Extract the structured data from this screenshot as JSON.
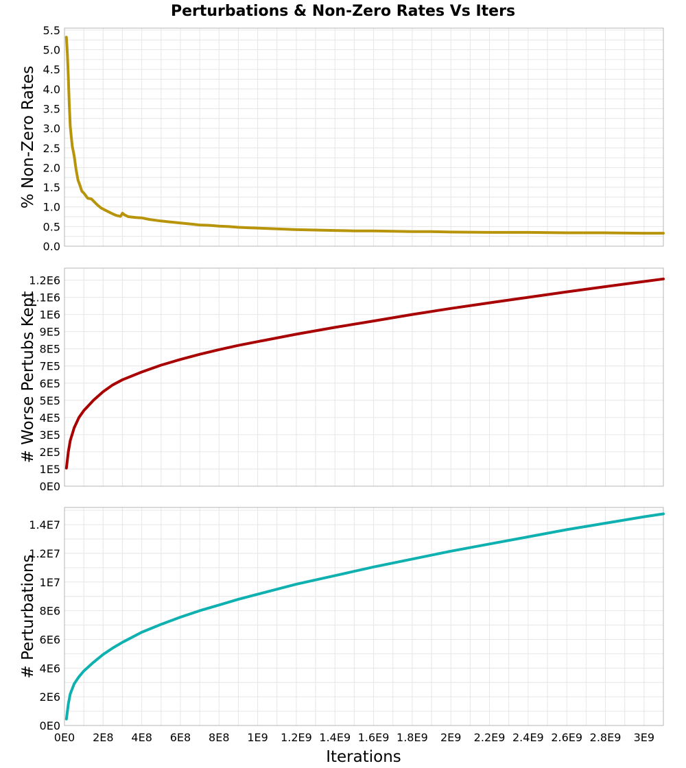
{
  "figure": {
    "title": "Perturbations & Non-Zero Rates Vs Iters",
    "xlabel": "Iterations"
  },
  "chart_data": [
    {
      "type": "line",
      "id": "nonzero",
      "ylabel": "% Non-Zero Rates",
      "xlim": [
        0,
        3100000000
      ],
      "ylim": [
        0,
        5.55
      ],
      "x_ticks_minor": [
        0,
        100000000,
        200000000,
        300000000,
        400000000,
        500000000,
        600000000,
        700000000,
        800000000,
        900000000,
        1000000000,
        1100000000,
        1200000000,
        1300000000,
        1400000000,
        1500000000,
        1600000000,
        1700000000,
        1800000000,
        1900000000,
        2000000000,
        2100000000,
        2200000000,
        2300000000,
        2400000000,
        2500000000,
        2600000000,
        2700000000,
        2800000000,
        2900000000,
        3000000000
      ],
      "y_ticks": [
        {
          "value": 0,
          "label": "0.0"
        },
        {
          "value": 0.5,
          "label": "0.5"
        },
        {
          "value": 1,
          "label": "1.0"
        },
        {
          "value": 1.5,
          "label": "1.5"
        },
        {
          "value": 2,
          "label": "2.0"
        },
        {
          "value": 2.5,
          "label": "2.5"
        },
        {
          "value": 3,
          "label": "3.0"
        },
        {
          "value": 3.5,
          "label": "3.5"
        },
        {
          "value": 4,
          "label": "4.0"
        },
        {
          "value": 4.5,
          "label": "4.5"
        },
        {
          "value": 5,
          "label": "5.0"
        },
        {
          "value": 5.5,
          "label": "5.5"
        }
      ],
      "y_minor": [
        0.25,
        0.75,
        1.25,
        1.75,
        2.25,
        2.75,
        3.25,
        3.75,
        4.25,
        4.75,
        5.25
      ],
      "grid": true,
      "series": [
        {
          "color": "#b8940b",
          "x": [
            10000000,
            15000000,
            20000000,
            25000000,
            30000000,
            40000000,
            50000000,
            60000000,
            70000000,
            80000000,
            90000000,
            100000000,
            120000000,
            140000000,
            150000000,
            170000000,
            190000000,
            210000000,
            230000000,
            250000000,
            270000000,
            290000000,
            300000000,
            310000000,
            330000000,
            350000000,
            370000000,
            400000000,
            420000000,
            440000000,
            470000000,
            500000000,
            540000000,
            580000000,
            620000000,
            660000000,
            700000000,
            750000000,
            800000000,
            850000000,
            900000000,
            950000000,
            1000000000,
            1100000000,
            1200000000,
            1300000000,
            1400000000,
            1500000000,
            1600000000,
            1700000000,
            1800000000,
            1900000000,
            2000000000,
            2200000000,
            2400000000,
            2600000000,
            2800000000,
            3000000000,
            3100000000
          ],
          "y": [
            5.32,
            4.9,
            4.3,
            3.6,
            3.05,
            2.55,
            2.3,
            1.95,
            1.68,
            1.55,
            1.4,
            1.35,
            1.22,
            1.2,
            1.15,
            1.05,
            0.97,
            0.92,
            0.87,
            0.82,
            0.78,
            0.76,
            0.84,
            0.8,
            0.75,
            0.74,
            0.73,
            0.72,
            0.7,
            0.68,
            0.66,
            0.64,
            0.62,
            0.6,
            0.58,
            0.56,
            0.54,
            0.53,
            0.51,
            0.5,
            0.48,
            0.47,
            0.46,
            0.44,
            0.42,
            0.41,
            0.4,
            0.39,
            0.39,
            0.38,
            0.37,
            0.37,
            0.36,
            0.35,
            0.35,
            0.34,
            0.34,
            0.33,
            0.33
          ]
        }
      ]
    },
    {
      "type": "line",
      "id": "worse",
      "ylabel": "# Worse Pertubs Kept",
      "xlim": [
        0,
        3100000000
      ],
      "ylim": [
        0,
        1270000
      ],
      "x_ticks_minor": [
        0,
        100000000,
        200000000,
        300000000,
        400000000,
        500000000,
        600000000,
        700000000,
        800000000,
        900000000,
        1000000000,
        1100000000,
        1200000000,
        1300000000,
        1400000000,
        1500000000,
        1600000000,
        1700000000,
        1800000000,
        1900000000,
        2000000000,
        2100000000,
        2200000000,
        2300000000,
        2400000000,
        2500000000,
        2600000000,
        2700000000,
        2800000000,
        2900000000,
        3000000000
      ],
      "y_ticks": [
        {
          "value": 0,
          "label": "0E0"
        },
        {
          "value": 100000,
          "label": "1E5"
        },
        {
          "value": 200000,
          "label": "2E5"
        },
        {
          "value": 300000,
          "label": "3E5"
        },
        {
          "value": 400000,
          "label": "4E5"
        },
        {
          "value": 500000,
          "label": "5E5"
        },
        {
          "value": 600000,
          "label": "6E5"
        },
        {
          "value": 700000,
          "label": "7E5"
        },
        {
          "value": 800000,
          "label": "8E5"
        },
        {
          "value": 900000,
          "label": "9E5"
        },
        {
          "value": 1000000,
          "label": "1E6"
        },
        {
          "value": 1100000,
          "label": "1.1E6"
        },
        {
          "value": 1200000,
          "label": "1.2E6"
        }
      ],
      "y_minor": [],
      "grid": true,
      "series": [
        {
          "color": "#a80000",
          "x": [
            10000000,
            20000000,
            30000000,
            50000000,
            75000000,
            100000000,
            150000000,
            200000000,
            250000000,
            300000000,
            400000000,
            500000000,
            600000000,
            700000000,
            800000000,
            900000000,
            1000000000,
            1200000000,
            1400000000,
            1600000000,
            1800000000,
            2000000000,
            2200000000,
            2400000000,
            2600000000,
            2800000000,
            3000000000,
            3100000000
          ],
          "y": [
            105000,
            200000,
            265000,
            340000,
            400000,
            440000,
            500000,
            550000,
            590000,
            620000,
            665000,
            705000,
            738000,
            768000,
            795000,
            820000,
            842000,
            885000,
            925000,
            962000,
            1000000,
            1035000,
            1068000,
            1100000,
            1132000,
            1162000,
            1192000,
            1207000
          ]
        }
      ]
    },
    {
      "type": "line",
      "id": "perturbations",
      "ylabel": "# Perturbations",
      "xlim": [
        0,
        3100000000
      ],
      "ylim": [
        0,
        15200000
      ],
      "x_ticks": [
        {
          "value": 0,
          "label": "0E0"
        },
        {
          "value": 200000000,
          "label": "2E8"
        },
        {
          "value": 400000000,
          "label": "4E8"
        },
        {
          "value": 600000000,
          "label": "6E8"
        },
        {
          "value": 800000000,
          "label": "8E8"
        },
        {
          "value": 1000000000,
          "label": "1E9"
        },
        {
          "value": 1200000000,
          "label": "1.2E9"
        },
        {
          "value": 1400000000,
          "label": "1.4E9"
        },
        {
          "value": 1600000000,
          "label": "1.6E9"
        },
        {
          "value": 1800000000,
          "label": "1.8E9"
        },
        {
          "value": 2000000000,
          "label": "2E9"
        },
        {
          "value": 2200000000,
          "label": "2.2E9"
        },
        {
          "value": 2400000000,
          "label": "2.4E9"
        },
        {
          "value": 2600000000,
          "label": "2.6E9"
        },
        {
          "value": 2800000000,
          "label": "2.8E9"
        },
        {
          "value": 3000000000,
          "label": "3E9"
        }
      ],
      "x_ticks_minor": [
        0,
        100000000,
        200000000,
        300000000,
        400000000,
        500000000,
        600000000,
        700000000,
        800000000,
        900000000,
        1000000000,
        1100000000,
        1200000000,
        1300000000,
        1400000000,
        1500000000,
        1600000000,
        1700000000,
        1800000000,
        1900000000,
        2000000000,
        2100000000,
        2200000000,
        2300000000,
        2400000000,
        2500000000,
        2600000000,
        2700000000,
        2800000000,
        2900000000,
        3000000000
      ],
      "y_ticks": [
        {
          "value": 0,
          "label": "0E0"
        },
        {
          "value": 2000000,
          "label": "2E6"
        },
        {
          "value": 4000000,
          "label": "4E6"
        },
        {
          "value": 6000000,
          "label": "6E6"
        },
        {
          "value": 8000000,
          "label": "8E6"
        },
        {
          "value": 10000000,
          "label": "1E7"
        },
        {
          "value": 12000000,
          "label": "1.2E7"
        },
        {
          "value": 14000000,
          "label": "1.4E7"
        }
      ],
      "y_minor": [
        1000000,
        3000000,
        5000000,
        7000000,
        9000000,
        11000000,
        13000000,
        15000000
      ],
      "grid": true,
      "series": [
        {
          "color": "#0fb0b0",
          "x": [
            10000000,
            20000000,
            30000000,
            50000000,
            75000000,
            100000000,
            150000000,
            200000000,
            250000000,
            300000000,
            400000000,
            500000000,
            600000000,
            700000000,
            800000000,
            900000000,
            1000000000,
            1200000000,
            1400000000,
            1600000000,
            1800000000,
            2000000000,
            2200000000,
            2400000000,
            2600000000,
            2800000000,
            3000000000,
            3100000000
          ],
          "y": [
            450000,
            1500000,
            2200000,
            2900000,
            3400000,
            3800000,
            4400000,
            4950000,
            5400000,
            5800000,
            6500000,
            7050000,
            7550000,
            8000000,
            8400000,
            8800000,
            9150000,
            9850000,
            10450000,
            11050000,
            11600000,
            12150000,
            12650000,
            13150000,
            13650000,
            14100000,
            14550000,
            14750000
          ]
        }
      ]
    }
  ]
}
